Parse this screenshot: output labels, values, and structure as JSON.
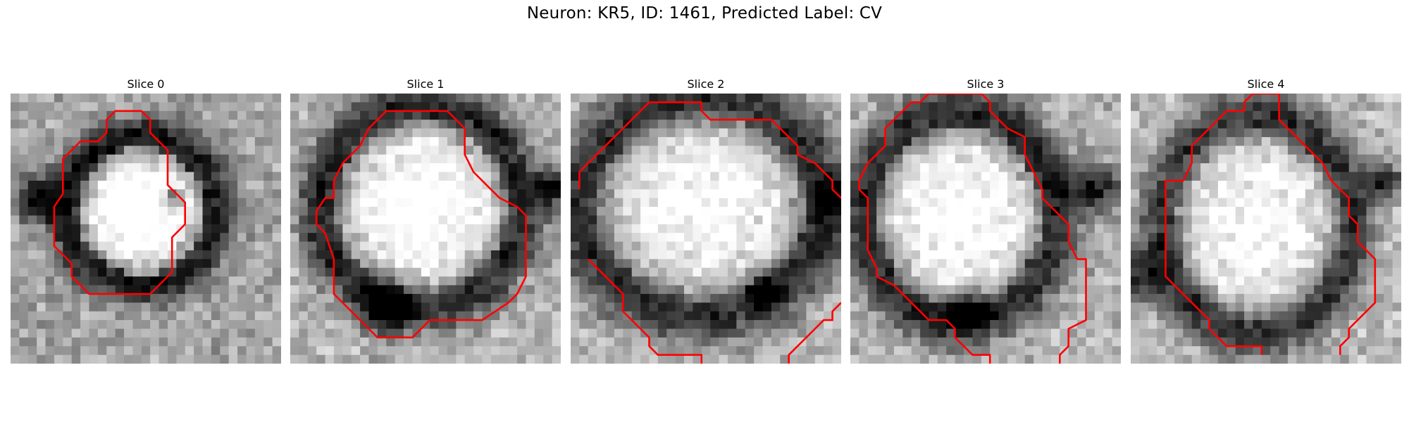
{
  "figure": {
    "title": "Neuron: KR5, ID: 1461, Predicted Label: CV"
  },
  "panels": [
    {
      "title": "Slice 0",
      "contour_color": "#ff0000"
    },
    {
      "title": "Slice 1",
      "contour_color": "#ff0000"
    },
    {
      "title": "Slice 2",
      "contour_color": "#ff0000"
    },
    {
      "title": "Slice 3",
      "contour_color": "#ff0000"
    },
    {
      "title": "Slice 4",
      "contour_color": "#ff0000"
    }
  ],
  "colors": {
    "background": "#ffffff",
    "contour": "#ff0000",
    "colormap": "grayscale"
  }
}
